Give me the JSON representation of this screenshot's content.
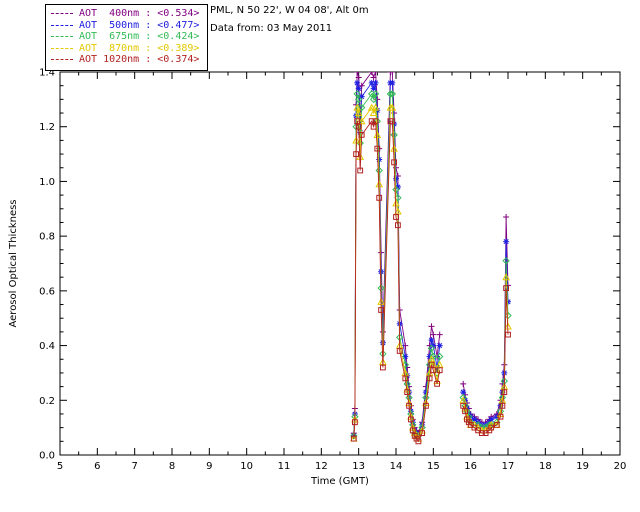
{
  "header": {
    "station_line": "PML, N 50 22', W 04 08', Alt 0m",
    "date_line": "Data from: 03 May 2011"
  },
  "legend": {
    "entries": [
      {
        "label": "AOT  400nm : <0.534>",
        "color": "#800080"
      },
      {
        "label": "AOT  500nm : <0.477>",
        "color": "#2020E0"
      },
      {
        "label": "AOT  675nm : <0.424>",
        "color": "#33BB55"
      },
      {
        "label": "AOT  870nm : <0.389>",
        "color": "#E3C800"
      },
      {
        "label": "AOT 1020nm : <0.374>",
        "color": "#B22222"
      }
    ]
  },
  "chart_data": {
    "type": "line",
    "title": "",
    "xlabel": "Time (GMT)",
    "ylabel": "Aerosol Optical Thickness",
    "xlim": [
      5,
      20
    ],
    "ylim": [
      0.0,
      1.4
    ],
    "xticks": [
      5,
      6,
      7,
      8,
      9,
      10,
      11,
      12,
      13,
      14,
      15,
      16,
      17,
      18,
      19,
      20
    ],
    "yticks": [
      0.0,
      0.2,
      0.4,
      0.6,
      0.8,
      1.0,
      1.2,
      1.4
    ],
    "legend_position": "top-left-outside",
    "grid": false,
    "x": [
      12.87,
      12.9,
      12.93,
      12.96,
      13.0,
      13.04,
      13.08,
      13.35,
      13.4,
      13.45,
      13.5,
      13.55,
      13.6,
      13.65,
      13.85,
      13.9,
      13.95,
      14.0,
      14.05,
      14.1,
      14.25,
      14.3,
      14.35,
      14.4,
      14.45,
      14.5,
      14.55,
      14.6,
      14.7,
      14.8,
      14.9,
      14.95,
      15.0,
      15.1,
      15.17,
      15.8,
      15.85,
      15.9,
      15.95,
      16.0,
      16.1,
      16.2,
      16.3,
      16.4,
      16.5,
      16.55,
      16.7,
      16.8,
      16.85,
      16.9,
      16.95,
      17.0
    ],
    "series": [
      {
        "name": "AOT 400nm",
        "mean": "<0.534>",
        "color": "#800080",
        "marker": "plus",
        "y": [
          0.08,
          0.17,
          1.28,
          1.4,
          1.38,
          1.22,
          1.35,
          1.4,
          1.38,
          1.4,
          1.3,
          1.12,
          0.74,
          0.45,
          1.4,
          1.4,
          1.25,
          1.05,
          1.02,
          0.53,
          0.4,
          0.32,
          0.25,
          0.18,
          0.13,
          0.1,
          0.09,
          0.08,
          0.12,
          0.25,
          0.4,
          0.47,
          0.44,
          0.36,
          0.44,
          0.26,
          0.22,
          0.19,
          0.17,
          0.15,
          0.14,
          0.13,
          0.12,
          0.12,
          0.13,
          0.14,
          0.15,
          0.2,
          0.26,
          0.33,
          0.87,
          0.62
        ]
      },
      {
        "name": "AOT 500nm",
        "mean": "<0.477>",
        "color": "#2020E0",
        "marker": "asterisk",
        "y": [
          0.07,
          0.15,
          1.24,
          1.36,
          1.34,
          1.18,
          1.31,
          1.36,
          1.34,
          1.36,
          1.26,
          1.08,
          0.67,
          0.41,
          1.36,
          1.36,
          1.21,
          1.01,
          0.98,
          0.48,
          0.36,
          0.29,
          0.23,
          0.16,
          0.12,
          0.09,
          0.08,
          0.07,
          0.11,
          0.23,
          0.36,
          0.42,
          0.4,
          0.32,
          0.4,
          0.23,
          0.2,
          0.17,
          0.15,
          0.14,
          0.13,
          0.12,
          0.11,
          0.11,
          0.12,
          0.13,
          0.14,
          0.18,
          0.23,
          0.3,
          0.78,
          0.56
        ]
      },
      {
        "name": "AOT 675nm",
        "mean": "<0.424>",
        "color": "#33BB55",
        "marker": "diamond",
        "y": [
          0.07,
          0.14,
          1.2,
          1.32,
          1.3,
          1.14,
          1.27,
          1.32,
          1.3,
          1.32,
          1.22,
          1.04,
          0.61,
          0.37,
          1.32,
          1.32,
          1.17,
          0.97,
          0.94,
          0.43,
          0.33,
          0.26,
          0.21,
          0.15,
          0.11,
          0.08,
          0.07,
          0.07,
          0.1,
          0.21,
          0.33,
          0.39,
          0.36,
          0.3,
          0.36,
          0.21,
          0.18,
          0.16,
          0.14,
          0.12,
          0.11,
          0.11,
          0.1,
          0.1,
          0.11,
          0.11,
          0.12,
          0.16,
          0.21,
          0.27,
          0.71,
          0.51
        ]
      },
      {
        "name": "AOT 870nm",
        "mean": "<0.389>",
        "color": "#E3C800",
        "marker": "triangle",
        "y": [
          0.06,
          0.13,
          1.15,
          1.27,
          1.25,
          1.09,
          1.22,
          1.27,
          1.25,
          1.27,
          1.17,
          0.99,
          0.56,
          0.34,
          1.27,
          1.27,
          1.12,
          0.92,
          0.89,
          0.4,
          0.3,
          0.24,
          0.19,
          0.14,
          0.1,
          0.08,
          0.07,
          0.06,
          0.09,
          0.19,
          0.3,
          0.35,
          0.33,
          0.27,
          0.33,
          0.2,
          0.17,
          0.14,
          0.13,
          0.11,
          0.11,
          0.1,
          0.09,
          0.09,
          0.1,
          0.11,
          0.11,
          0.15,
          0.2,
          0.25,
          0.65,
          0.47
        ]
      },
      {
        "name": "AOT 1020nm",
        "mean": "<0.374>",
        "color": "#B22222",
        "marker": "square",
        "y": [
          0.06,
          0.12,
          1.1,
          1.22,
          1.2,
          1.04,
          1.17,
          1.22,
          1.2,
          1.22,
          1.12,
          0.94,
          0.53,
          0.32,
          1.22,
          1.22,
          1.07,
          0.87,
          0.84,
          0.38,
          0.28,
          0.23,
          0.18,
          0.13,
          0.09,
          0.07,
          0.06,
          0.05,
          0.08,
          0.18,
          0.28,
          0.33,
          0.31,
          0.26,
          0.31,
          0.18,
          0.16,
          0.13,
          0.12,
          0.11,
          0.1,
          0.09,
          0.08,
          0.08,
          0.09,
          0.1,
          0.11,
          0.14,
          0.18,
          0.23,
          0.61,
          0.44
        ]
      }
    ]
  }
}
